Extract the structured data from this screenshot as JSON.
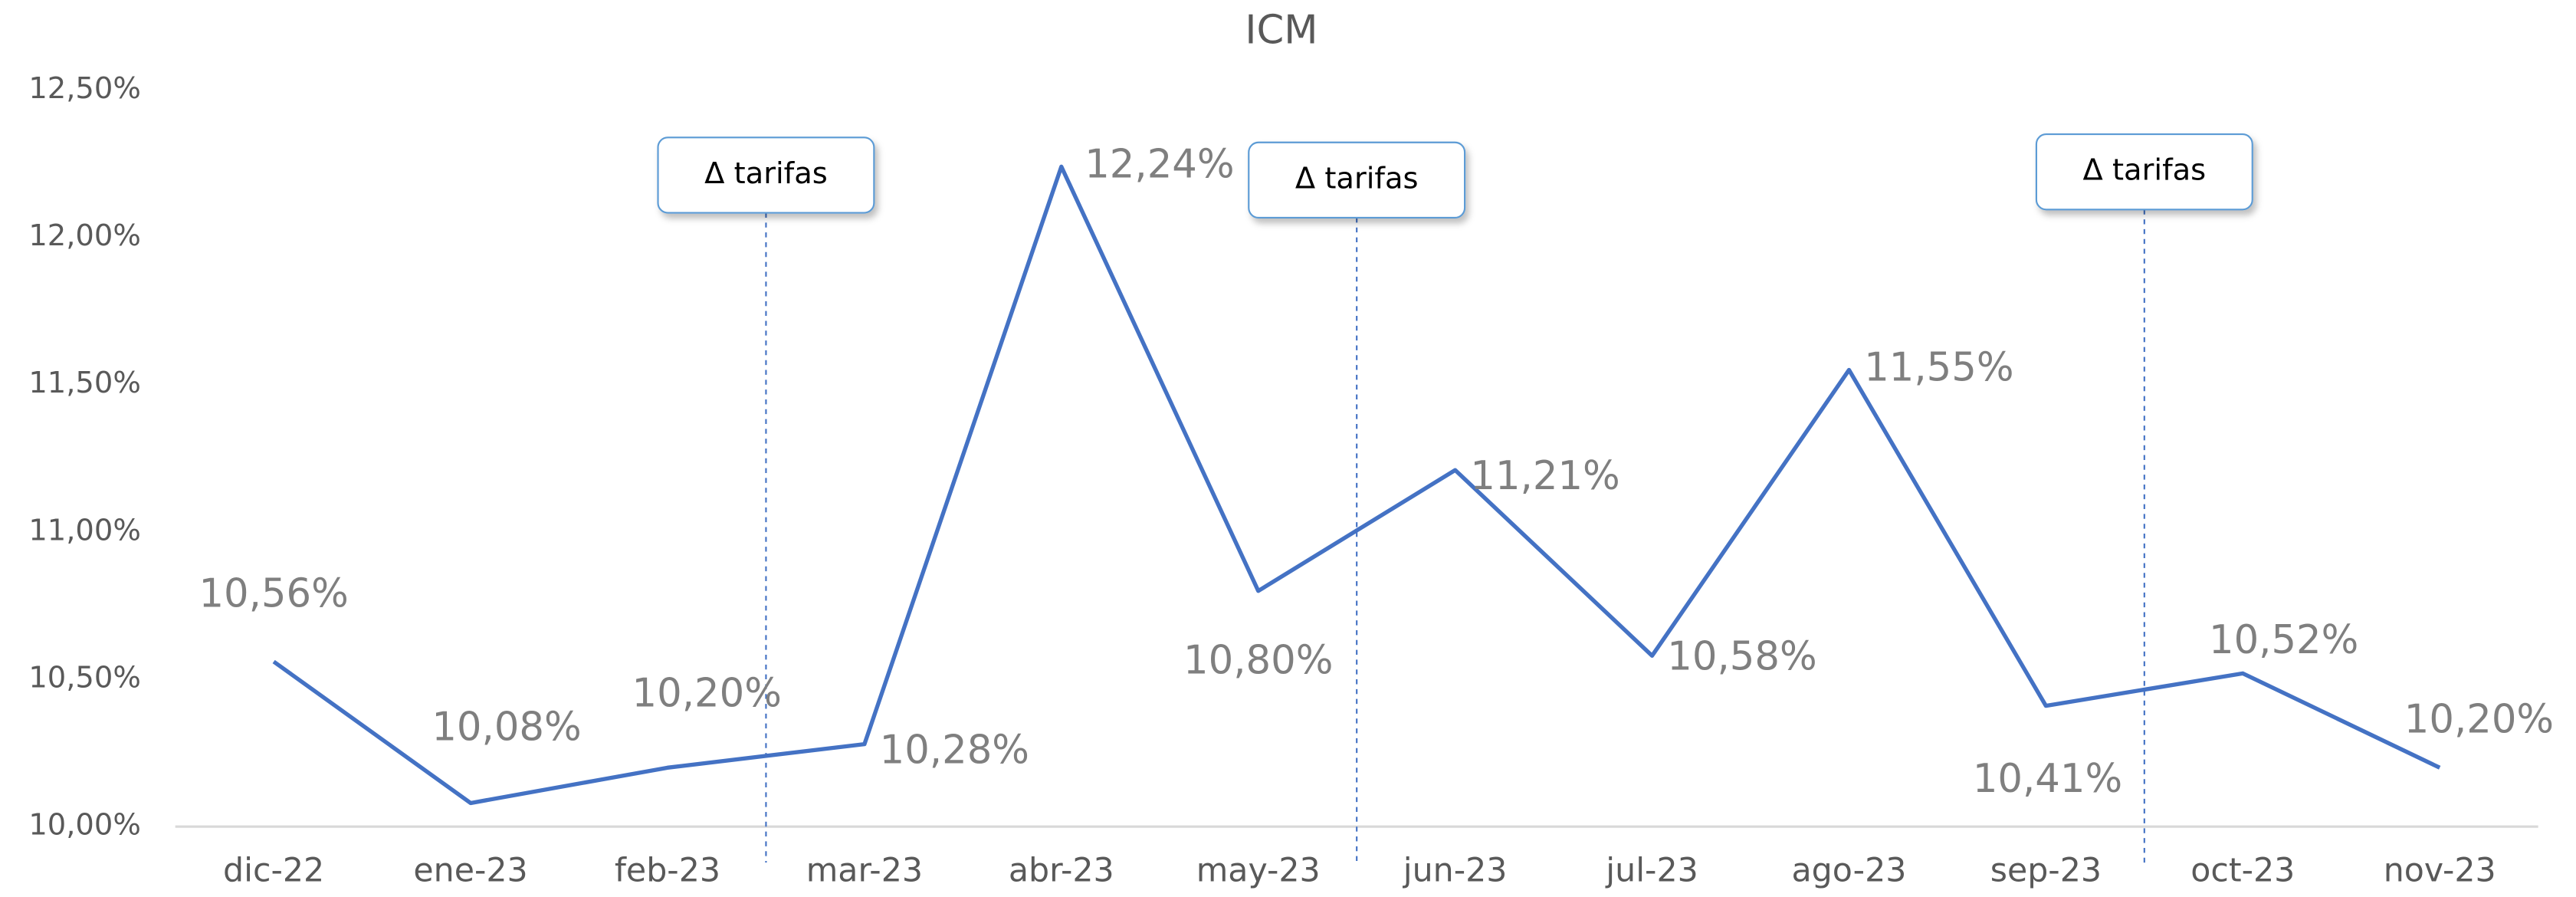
{
  "chart_data": {
    "type": "line",
    "title": "ICM",
    "categories": [
      "dic-22",
      "ene-23",
      "feb-23",
      "mar-23",
      "abr-23",
      "may-23",
      "jun-23",
      "jul-23",
      "ago-23",
      "sep-23",
      "oct-23",
      "nov-23"
    ],
    "series": [
      {
        "name": "ICM",
        "color": "#4472c4",
        "values": [
          10.56,
          10.08,
          10.2,
          10.28,
          12.24,
          10.8,
          11.21,
          10.58,
          11.55,
          10.41,
          10.52,
          10.2
        ],
        "value_labels": [
          "10,56%",
          "10,08%",
          "10,20%",
          "10,28%",
          "12,24%",
          "10,80%",
          "11,21%",
          "10,58%",
          "11,55%",
          "10,41%",
          "10,52%",
          "10,20%"
        ]
      }
    ],
    "ylim": [
      10,
      12.5
    ],
    "yticks": [
      {
        "value": 10,
        "label": "10,00%"
      },
      {
        "value": 10.5,
        "label": "10,50%"
      },
      {
        "value": 11,
        "label": "11,00%"
      },
      {
        "value": 11.5,
        "label": "11,50%"
      },
      {
        "value": 12,
        "label": "12,00%"
      },
      {
        "value": 12.5,
        "label": "12,50%"
      }
    ],
    "annotations": [
      "Δ tarifas",
      "Δ tarifas",
      "Δ tarifas"
    ]
  }
}
